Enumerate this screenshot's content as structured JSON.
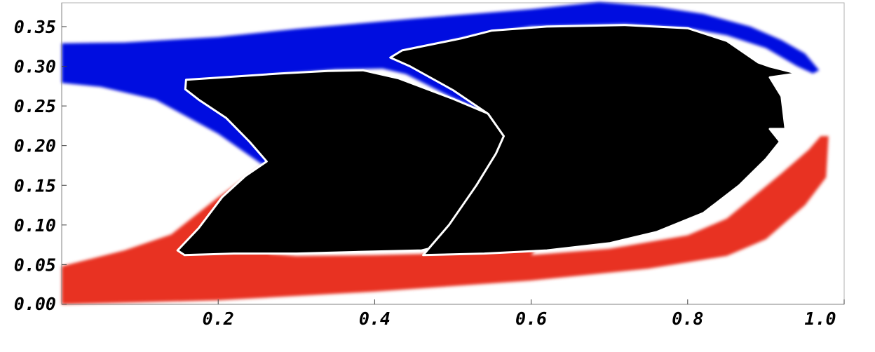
{
  "chart_data": {
    "type": "area",
    "title": "",
    "xlabel": "",
    "ylabel": "",
    "xlim": [
      0.0,
      1.0
    ],
    "ylim": [
      0.0,
      0.38
    ],
    "x_ticks": [
      {
        "value": 0.2,
        "label": "0.2"
      },
      {
        "value": 0.4,
        "label": "0.4"
      },
      {
        "value": 0.6,
        "label": "0.6"
      },
      {
        "value": 0.8,
        "label": "0.8"
      },
      {
        "value": 1.0,
        "label": "1.0"
      }
    ],
    "y_ticks": [
      {
        "value": 0.0,
        "label": "0.00"
      },
      {
        "value": 0.05,
        "label": "0.05"
      },
      {
        "value": 0.1,
        "label": "0.10"
      },
      {
        "value": 0.15,
        "label": "0.15"
      },
      {
        "value": 0.2,
        "label": "0.20"
      },
      {
        "value": 0.25,
        "label": "0.25"
      },
      {
        "value": 0.3,
        "label": "0.30"
      },
      {
        "value": 0.35,
        "label": "0.35"
      }
    ],
    "colors": {
      "upper": "#0010e0",
      "lower": "#e83324",
      "solid": "#000000",
      "background": "#ffffff"
    },
    "regions": [
      {
        "name": "upper-region",
        "color_key": "upper",
        "points": [
          [
            0.0,
            0.329
          ],
          [
            0.08,
            0.33
          ],
          [
            0.2,
            0.337
          ],
          [
            0.3,
            0.347
          ],
          [
            0.45,
            0.36
          ],
          [
            0.6,
            0.372
          ],
          [
            0.687,
            0.381
          ],
          [
            0.76,
            0.375
          ],
          [
            0.82,
            0.366
          ],
          [
            0.88,
            0.35
          ],
          [
            0.92,
            0.333
          ],
          [
            0.95,
            0.316
          ],
          [
            0.968,
            0.295
          ],
          [
            0.96,
            0.291
          ],
          [
            0.94,
            0.3
          ],
          [
            0.9,
            0.323
          ],
          [
            0.85,
            0.339
          ],
          [
            0.8,
            0.348
          ],
          [
            0.72,
            0.353
          ],
          [
            0.6,
            0.35
          ],
          [
            0.525,
            0.338
          ],
          [
            0.45,
            0.32
          ],
          [
            0.435,
            0.308
          ],
          [
            0.5,
            0.28
          ],
          [
            0.56,
            0.25
          ],
          [
            0.61,
            0.22
          ],
          [
            0.64,
            0.211
          ],
          [
            0.665,
            0.212
          ],
          [
            0.625,
            0.216
          ],
          [
            0.57,
            0.23
          ],
          [
            0.5,
            0.26
          ],
          [
            0.44,
            0.29
          ],
          [
            0.41,
            0.297
          ],
          [
            0.35,
            0.296
          ],
          [
            0.28,
            0.29
          ],
          [
            0.265,
            0.289
          ],
          [
            0.255,
            0.279
          ],
          [
            0.3,
            0.245
          ],
          [
            0.33,
            0.215
          ],
          [
            0.36,
            0.198
          ],
          [
            0.31,
            0.185
          ],
          [
            0.255,
            0.177
          ],
          [
            0.2,
            0.215
          ],
          [
            0.12,
            0.258
          ],
          [
            0.05,
            0.274
          ],
          [
            0.0,
            0.279
          ]
        ]
      },
      {
        "name": "lower-region",
        "color_key": "lower",
        "points": [
          [
            0.0,
            0.0
          ],
          [
            0.2,
            0.005
          ],
          [
            0.4,
            0.016
          ],
          [
            0.6,
            0.03
          ],
          [
            0.75,
            0.045
          ],
          [
            0.85,
            0.061
          ],
          [
            0.9,
            0.082
          ],
          [
            0.95,
            0.125
          ],
          [
            0.977,
            0.16
          ],
          [
            0.98,
            0.212
          ],
          [
            0.97,
            0.212
          ],
          [
            0.955,
            0.195
          ],
          [
            0.92,
            0.165
          ],
          [
            0.85,
            0.108
          ],
          [
            0.8,
            0.087
          ],
          [
            0.7,
            0.07
          ],
          [
            0.6,
            0.062
          ],
          [
            0.61,
            0.074
          ],
          [
            0.64,
            0.115
          ],
          [
            0.69,
            0.17
          ],
          [
            0.724,
            0.216
          ],
          [
            0.705,
            0.213
          ],
          [
            0.67,
            0.175
          ],
          [
            0.62,
            0.124
          ],
          [
            0.59,
            0.084
          ],
          [
            0.55,
            0.068
          ],
          [
            0.48,
            0.064
          ],
          [
            0.4,
            0.062
          ],
          [
            0.3,
            0.061
          ],
          [
            0.265,
            0.064
          ],
          [
            0.27,
            0.078
          ],
          [
            0.3,
            0.11
          ],
          [
            0.34,
            0.146
          ],
          [
            0.365,
            0.175
          ],
          [
            0.35,
            0.176
          ],
          [
            0.3,
            0.165
          ],
          [
            0.255,
            0.174
          ],
          [
            0.2,
            0.135
          ],
          [
            0.14,
            0.088
          ],
          [
            0.08,
            0.068
          ],
          [
            0.0,
            0.048
          ]
        ]
      },
      {
        "name": "solid-left-lobe",
        "color_key": "solid",
        "points": [
          [
            0.157,
            0.062
          ],
          [
            0.22,
            0.064
          ],
          [
            0.3,
            0.064
          ],
          [
            0.38,
            0.066
          ],
          [
            0.46,
            0.068
          ],
          [
            0.49,
            0.075
          ],
          [
            0.53,
            0.105
          ],
          [
            0.58,
            0.153
          ],
          [
            0.63,
            0.196
          ],
          [
            0.628,
            0.205
          ],
          [
            0.61,
            0.211
          ],
          [
            0.57,
            0.23
          ],
          [
            0.5,
            0.259
          ],
          [
            0.43,
            0.285
          ],
          [
            0.385,
            0.295
          ],
          [
            0.34,
            0.294
          ],
          [
            0.28,
            0.291
          ],
          [
            0.159,
            0.283
          ],
          [
            0.158,
            0.271
          ],
          [
            0.175,
            0.258
          ],
          [
            0.21,
            0.235
          ],
          [
            0.24,
            0.205
          ],
          [
            0.262,
            0.18
          ],
          [
            0.235,
            0.162
          ],
          [
            0.205,
            0.135
          ],
          [
            0.175,
            0.096
          ],
          [
            0.148,
            0.068
          ]
        ]
      },
      {
        "name": "solid-right-lobe",
        "color_key": "solid",
        "points": [
          [
            0.462,
            0.062
          ],
          [
            0.54,
            0.064
          ],
          [
            0.62,
            0.068
          ],
          [
            0.7,
            0.077
          ],
          [
            0.76,
            0.091
          ],
          [
            0.82,
            0.115
          ],
          [
            0.866,
            0.15
          ],
          [
            0.9,
            0.183
          ],
          [
            0.918,
            0.205
          ],
          [
            0.905,
            0.221
          ],
          [
            0.925,
            0.221
          ],
          [
            0.92,
            0.262
          ],
          [
            0.905,
            0.286
          ],
          [
            0.94,
            0.291
          ],
          [
            0.904,
            0.3
          ],
          [
            0.89,
            0.305
          ],
          [
            0.85,
            0.332
          ],
          [
            0.8,
            0.348
          ],
          [
            0.72,
            0.352
          ],
          [
            0.62,
            0.35
          ],
          [
            0.55,
            0.345
          ],
          [
            0.51,
            0.335
          ],
          [
            0.435,
            0.32
          ],
          [
            0.42,
            0.311
          ],
          [
            0.445,
            0.3
          ],
          [
            0.5,
            0.27
          ],
          [
            0.545,
            0.24
          ],
          [
            0.565,
            0.212
          ],
          [
            0.555,
            0.19
          ],
          [
            0.53,
            0.15
          ],
          [
            0.495,
            0.1
          ],
          [
            0.467,
            0.068
          ]
        ]
      }
    ]
  }
}
